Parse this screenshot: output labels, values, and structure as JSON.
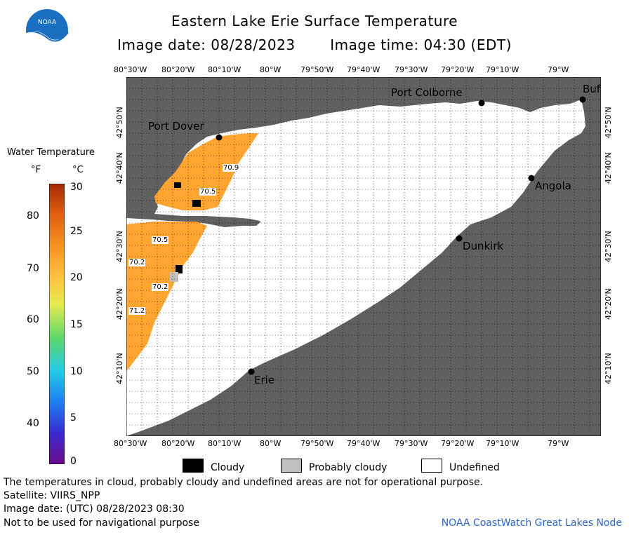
{
  "title": "Eastern Lake Erie Surface Temperature",
  "image_date": "Image date: 08/28/2023",
  "image_time": "Image time: 04:30 (EDT)",
  "logo_text": "NOAA",
  "lon_labels": [
    "80°30'W",
    "80°20'W",
    "80°10'W",
    "80°W",
    "79°50'W",
    "79°40'W",
    "79°30'W",
    "79°20'W",
    "79°10'W",
    "79°W"
  ],
  "lat_labels": [
    "42°50'N",
    "42°40'N",
    "42°30'N",
    "42°20'N",
    "42°10'N"
  ],
  "cities": {
    "port_dover": "Port Dover",
    "port_colborne": "Port Colborne",
    "buffalo": "Buf",
    "angola": "Angola",
    "dunkirk": "Dunkirk",
    "erie": "Erie"
  },
  "isotherms": [
    "70.9",
    "70.5",
    "70.5",
    "70.2",
    "70.2",
    "71.2"
  ],
  "legend": {
    "title": "Water Temperature",
    "unit_f": "°F",
    "unit_c": "°C",
    "f_ticks": [
      "80",
      "70",
      "60",
      "50",
      "40"
    ],
    "c_ticks": [
      "30",
      "25",
      "20",
      "15",
      "10",
      "5",
      "0"
    ],
    "colors": [
      "#6a0a8a",
      "#3a2ad0",
      "#1e7ef0",
      "#22c8e8",
      "#5ed86a",
      "#e6ea50",
      "#ffc040",
      "#f59020",
      "#e06010",
      "#a52a08"
    ]
  },
  "key": {
    "cloudy": "Cloudy",
    "probably_cloudy": "Probably cloudy",
    "undefined": "Undefined",
    "cloudy_color": "#000000",
    "probably_cloudy_color": "#c0c0c0",
    "undefined_color": "#ffffff"
  },
  "footer": {
    "note": "The temperatures in cloud, probably cloudy and undefined areas are not for operational purpose.",
    "satellite": "Satellite: VIIRS_NPP",
    "utc": "Image date: (UTC) 08/28/2023  08:30",
    "nav": "Not to be used for navigational purpose",
    "credit": "NOAA CoastWatch Great Lakes Node"
  },
  "map_colors": {
    "land": "#606060",
    "water_undefined": "#ffffff",
    "warm_water": "#ffa530",
    "grid": "#000000"
  }
}
